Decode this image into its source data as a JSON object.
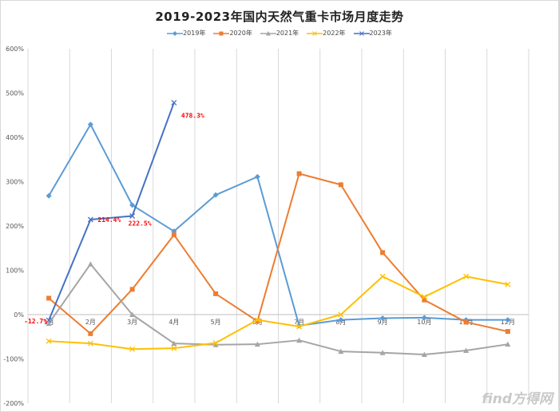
{
  "chart_data": {
    "type": "line",
    "title": "2019-2023年国内天然气重卡市场月度走势",
    "xlabel": "",
    "ylabel": "",
    "categories": [
      "1月",
      "2月",
      "3月",
      "4月",
      "5月",
      "6月",
      "7月",
      "8月",
      "9月",
      "10月",
      "11月",
      "12月"
    ],
    "ylim": [
      -200,
      600
    ],
    "yticks": [
      "-200%",
      "-100%",
      "0%",
      "100%",
      "200%",
      "300%",
      "400%",
      "500%",
      "600%"
    ],
    "grid": "vertical",
    "legend_position": "top",
    "series": [
      {
        "name": "2019年",
        "color": "#5B9BD5",
        "marker": "diamond",
        "values": [
          268,
          429,
          247,
          188,
          270,
          311,
          -25,
          -12,
          -8,
          -7,
          -12,
          -12
        ]
      },
      {
        "name": "2020年",
        "color": "#ED7D31",
        "marker": "square",
        "values": [
          37,
          -43,
          57,
          180,
          47,
          -15,
          318,
          293,
          140,
          33,
          -17,
          -38
        ]
      },
      {
        "name": "2021年",
        "color": "#A5A5A5",
        "marker": "triangle",
        "values": [
          -20,
          114,
          0,
          -65,
          -68,
          -67,
          -58,
          -83,
          -86,
          -90,
          -81,
          -67
        ]
      },
      {
        "name": "2022年",
        "color": "#FFC000",
        "marker": "x",
        "values": [
          -60,
          -65,
          -78,
          -76,
          -64,
          -12,
          -27,
          0,
          86,
          40,
          86,
          68
        ]
      },
      {
        "name": "2023年",
        "color": "#4472C4",
        "marker": "x",
        "values": [
          -12.7,
          214.4,
          222.5,
          478.3,
          null,
          null,
          null,
          null,
          null,
          null,
          null,
          null
        ]
      }
    ],
    "data_labels": [
      {
        "series": "2023年",
        "index": 0,
        "text": "-12.7%"
      },
      {
        "series": "2023年",
        "index": 1,
        "text": "214.4%"
      },
      {
        "series": "2023年",
        "index": 2,
        "text": "222.5%"
      },
      {
        "series": "2023年",
        "index": 3,
        "text": "478.3%"
      }
    ]
  },
  "watermark": "find方得网"
}
